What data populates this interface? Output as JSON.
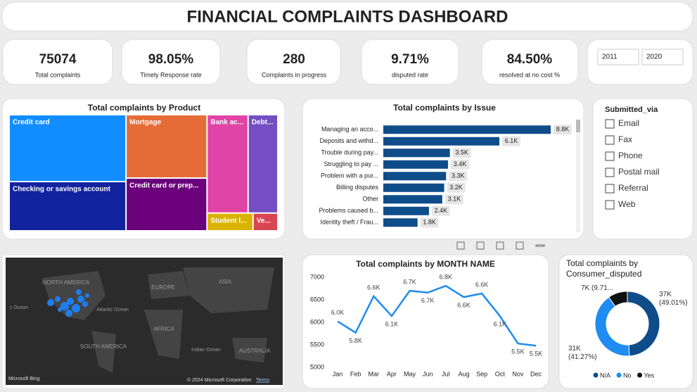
{
  "title": "FINANCIAL COMPLAINTS DASHBOARD",
  "kpis": [
    {
      "value": "75074",
      "label": "Total complaints"
    },
    {
      "value": "98.05%",
      "label": "Timely Response rate"
    },
    {
      "value": "280",
      "label": "Complaints in progress"
    },
    {
      "value": "9.71%",
      "label": "disputed rate"
    },
    {
      "value": "84.50%",
      "label": "resolved at no cost %"
    }
  ],
  "date_range": {
    "from": "2011",
    "to": "2020"
  },
  "slicer": {
    "title": "Submitted_via",
    "options": [
      "Email",
      "Fax",
      "Phone",
      "Postal mail",
      "Referral",
      "Web"
    ]
  },
  "map": {
    "labels": [
      "NORTH AMERICA",
      "EUROPE",
      "ASIA",
      "AFRICA",
      "SOUTH AMERICA",
      "AUSTRALIA",
      "Atlantic Ocean",
      "Indian Ocean",
      "c Ocean"
    ],
    "brand": "Microsoft Bing",
    "copyright": "© 2024 Microsoft Corporation",
    "terms": "Terms"
  },
  "chart_data": [
    {
      "type": "treemap",
      "title": "Total complaints by Product",
      "categories": [
        "Credit card",
        "Checking or savings account",
        "Mortgage",
        "Credit card or prep...",
        "Bank ac...",
        "Debt...",
        "Student l...",
        "Ve..."
      ],
      "values": [
        18800,
        13850,
        12350,
        10290,
        9710,
        7040,
        1970,
        1060
      ],
      "colors": [
        "#118dff",
        "#12239e",
        "#e66c37",
        "#6b007b",
        "#e044a7",
        "#744ec2",
        "#d9b300",
        "#d64550"
      ]
    },
    {
      "type": "hbar",
      "title": "Total complaints by Issue",
      "categories": [
        "Managing an acco...",
        "Deposits and withd...",
        "Trouble during pay...",
        "Struggling to pay ...",
        "Problem with a pur...",
        "Billing disputes",
        "Other",
        "Problems caused b...",
        "Identity theft / Frau..."
      ],
      "values": [
        8800,
        6100,
        3500,
        3400,
        3300,
        3200,
        3100,
        2400,
        1800
      ],
      "value_labels": [
        "8.8K",
        "6.1K",
        "3.5K",
        "3.4K",
        "3.3K",
        "3.2K",
        "3.1K",
        "2.4K",
        "1.8K"
      ],
      "color": "#0f4c8a"
    },
    {
      "type": "line",
      "title": "Total complaints by MONTH NAME",
      "categories": [
        "Jan",
        "Feb",
        "Mar",
        "Apr",
        "May",
        "Jun",
        "Jul",
        "Aug",
        "Sep",
        "Oct",
        "Nov",
        "Dec"
      ],
      "values": [
        6020,
        5770,
        6580,
        6140,
        6700,
        6660,
        6810,
        6560,
        6640,
        6140,
        5530,
        5480
      ],
      "value_labels": [
        "6.0K",
        "5.8K",
        "6.6K",
        "6.1K",
        "6.7K",
        "6.7K",
        "6.8K",
        "6.6K",
        "6.6K",
        "6.1K",
        "5.5K",
        "5.5K"
      ],
      "ylim": [
        5000,
        7000
      ],
      "yticks": [
        5000,
        5500,
        6000,
        6500,
        7000
      ],
      "color": "#1e8cf0"
    },
    {
      "type": "donut",
      "title": "Total complaints by Consumer_disputed",
      "categories": [
        "N/A",
        "No",
        "Yes"
      ],
      "values": [
        36794,
        30983,
        7290
      ],
      "value_labels": [
        "37K (49.01%)",
        "31K (41.27%)",
        "7K (9.71..."
      ],
      "colors": [
        "#0f4c8a",
        "#1e8cf0",
        "#111111"
      ]
    }
  ]
}
